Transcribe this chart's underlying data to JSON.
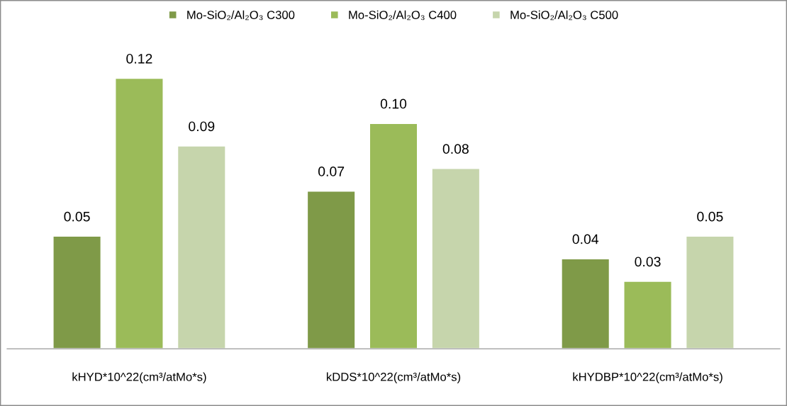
{
  "chart_data": {
    "type": "bar",
    "categories": [
      "kHYD*10^22(cm³/atMo*s)",
      "kDDS*10^22(cm³/atMo*s)",
      "kHYDBP*10^22(cm³/atMo*s)"
    ],
    "series": [
      {
        "name": "Mo-SiO₂/Al₂O₃ C300",
        "color": "#7f9a48",
        "values": [
          0.05,
          0.07,
          0.04
        ],
        "value_labels": [
          "0.05",
          "0.07",
          "0.04"
        ]
      },
      {
        "name": "Mo-SiO₂/Al₂O₃ C400",
        "color": "#9bbb59",
        "values": [
          0.12,
          0.1,
          0.03
        ],
        "value_labels": [
          "0.12",
          "0.10",
          "0.03"
        ]
      },
      {
        "name": "Mo-SiO₂/Al₂O₃ C500",
        "color": "#c6d5ac",
        "values": [
          0.09,
          0.08,
          0.05
        ],
        "value_labels": [
          "0.09",
          "0.08",
          "0.05"
        ]
      }
    ],
    "legend": "top",
    "grid": false
  }
}
